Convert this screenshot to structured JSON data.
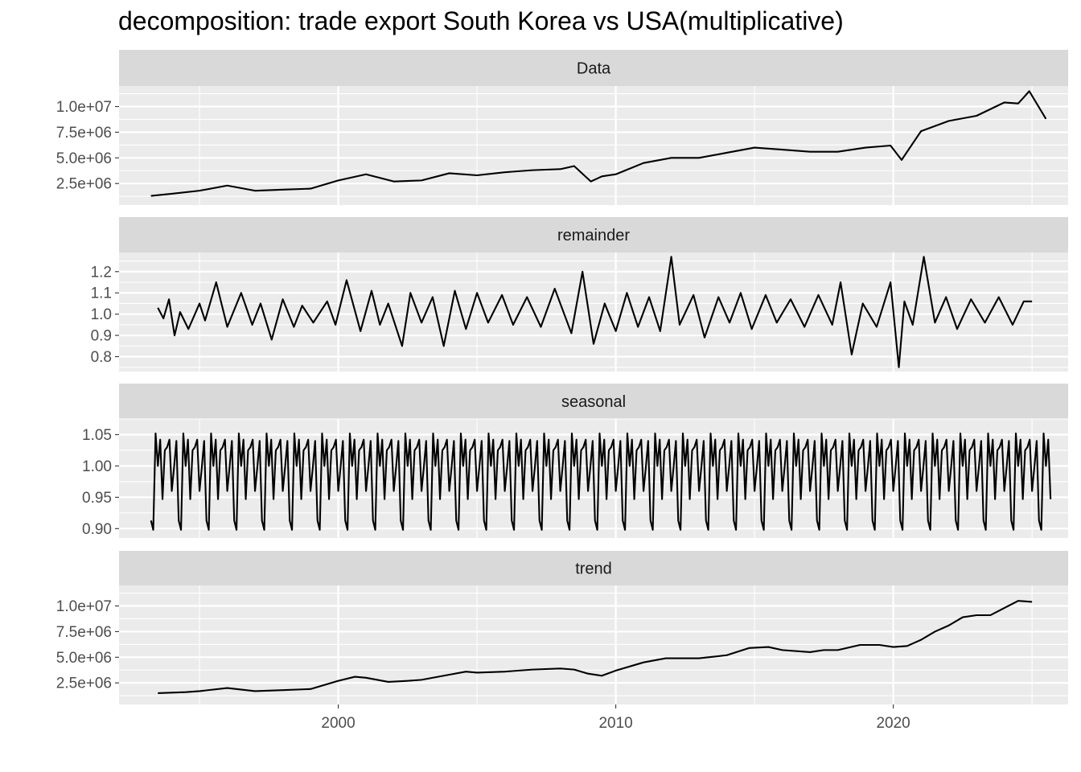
{
  "title": "decomposition: trade export South Korea vs USA(multiplicative)",
  "colors": {
    "panel_background": "#ebebeb",
    "strip_background": "#d9d9d9",
    "grid": "#ffffff",
    "line": "#000000",
    "axis_text": "#4d4d4d",
    "strip_text": "#1a1a1a"
  },
  "chart_data": {
    "type": "line",
    "title": "decomposition: trade export South Korea vs USA(multiplicative)",
    "xlabel": "",
    "ylabel": "",
    "grid": true,
    "legend": "none",
    "x_axis": {
      "range": [
        1992.1,
        2026.3
      ],
      "ticks": [
        2000,
        2010,
        2020
      ],
      "tick_labels": [
        "2000",
        "2010",
        "2020"
      ]
    },
    "panels": [
      {
        "name": "Data",
        "ylim": [
          400000,
          12000000
        ],
        "y_ticks": [
          2500000,
          5000000,
          7500000,
          10000000
        ],
        "y_tick_labels": [
          "2.5e+06",
          "5.0e+06",
          "7.5e+06",
          "1.0e+07"
        ],
        "x": [
          1993.25,
          1994,
          1995,
          1996,
          1997,
          1998,
          1999,
          2000,
          2001,
          2002,
          2003,
          2004,
          2005,
          2006,
          2007,
          2008,
          2008.5,
          2009.1,
          2009.5,
          2010,
          2011,
          2012,
          2013,
          2014,
          2015,
          2016,
          2017,
          2018,
          2019,
          2019.9,
          2020.3,
          2021,
          2022,
          2023,
          2024,
          2024.5,
          2024.9,
          2025.5
        ],
        "values": [
          1300000,
          1500000,
          1800000,
          2300000,
          1800000,
          1900000,
          2000000,
          2800000,
          3400000,
          2700000,
          2800000,
          3500000,
          3300000,
          3600000,
          3800000,
          3900000,
          4200000,
          2700000,
          3200000,
          3400000,
          4500000,
          5000000,
          5000000,
          5500000,
          6000000,
          5800000,
          5600000,
          5600000,
          6000000,
          6200000,
          4800000,
          7600000,
          8600000,
          9100000,
          10400000,
          10300000,
          11500000,
          8800000
        ]
      },
      {
        "name": "remainder",
        "ylim": [
          0.73,
          1.29
        ],
        "y_ticks": [
          0.8,
          0.9,
          1.0,
          1.1,
          1.2
        ],
        "y_tick_labels": [
          "0.8",
          "0.9",
          "1.0",
          "1.1",
          "1.2"
        ],
        "x": [
          1993.5,
          1993.7,
          1993.9,
          1994.1,
          1994.3,
          1994.6,
          1995,
          1995.2,
          1995.6,
          1996,
          1996.5,
          1996.9,
          1997.2,
          1997.6,
          1998,
          1998.4,
          1998.7,
          1999.1,
          1999.6,
          1999.9,
          2000.3,
          2000.8,
          2001.2,
          2001.5,
          2001.8,
          2002.3,
          2002.6,
          2003,
          2003.4,
          2003.8,
          2004.2,
          2004.6,
          2005,
          2005.4,
          2005.9,
          2006.3,
          2006.8,
          2007.3,
          2007.8,
          2008.4,
          2008.8,
          2009.2,
          2009.6,
          2010,
          2010.4,
          2010.8,
          2011.2,
          2011.6,
          2012,
          2012.3,
          2012.8,
          2013.2,
          2013.7,
          2014.1,
          2014.5,
          2014.9,
          2015.4,
          2015.8,
          2016.3,
          2016.8,
          2017.3,
          2017.8,
          2018.1,
          2018.5,
          2018.9,
          2019.4,
          2019.9,
          2020.2,
          2020.4,
          2020.7,
          2021.1,
          2021.5,
          2021.9,
          2022.3,
          2022.8,
          2023.3,
          2023.8,
          2024.3,
          2024.7,
          2025
        ],
        "values": [
          1.03,
          0.98,
          1.07,
          0.9,
          1.01,
          0.93,
          1.05,
          0.97,
          1.15,
          0.94,
          1.1,
          0.95,
          1.05,
          0.88,
          1.07,
          0.94,
          1.04,
          0.96,
          1.06,
          0.95,
          1.16,
          0.92,
          1.11,
          0.95,
          1.05,
          0.85,
          1.1,
          0.96,
          1.08,
          0.85,
          1.11,
          0.93,
          1.1,
          0.96,
          1.09,
          0.95,
          1.08,
          0.94,
          1.12,
          0.91,
          1.2,
          0.86,
          1.05,
          0.92,
          1.1,
          0.94,
          1.08,
          0.92,
          1.27,
          0.95,
          1.09,
          0.89,
          1.08,
          0.96,
          1.1,
          0.93,
          1.09,
          0.96,
          1.07,
          0.94,
          1.09,
          0.95,
          1.15,
          0.81,
          1.05,
          0.94,
          1.15,
          0.75,
          1.06,
          0.95,
          1.27,
          0.96,
          1.08,
          0.93,
          1.07,
          0.96,
          1.08,
          0.95,
          1.06,
          1.06
        ]
      },
      {
        "name": "seasonal",
        "ylim": [
          0.885,
          1.075
        ],
        "y_ticks": [
          0.9,
          0.95,
          1.0,
          1.05
        ],
        "y_tick_labels": [
          "0.90",
          "0.95",
          "1.00",
          "1.05"
        ],
        "seasonal_pattern": [
          0.913,
          0.898,
          1.052,
          1.0,
          1.042,
          0.947,
          1.025,
          1.03,
          1.042,
          0.96,
          0.998,
          1.04
        ],
        "start_year": 1993.25,
        "years": 32.5,
        "x": [
          1993.25,
          1993.33,
          1993.42,
          1993.5,
          1993.58,
          1993.67,
          1993.75,
          1993.83,
          1993.92,
          1994.0,
          1994.08,
          1994.17
        ],
        "values": [
          0.913,
          0.898,
          1.052,
          1.0,
          1.042,
          0.947,
          1.025,
          1.03,
          1.042,
          0.96,
          0.998,
          1.04
        ]
      },
      {
        "name": "trend",
        "ylim": [
          400000,
          12000000
        ],
        "y_ticks": [
          2500000,
          5000000,
          7500000,
          10000000
        ],
        "y_tick_labels": [
          "2.5e+06",
          "5.0e+06",
          "7.5e+06",
          "1.0e+07"
        ],
        "x": [
          1993.5,
          1994.5,
          1995,
          1996,
          1997,
          1998,
          1999,
          2000,
          2000.6,
          2001,
          2001.8,
          2002.5,
          2003,
          2004,
          2004.6,
          2005,
          2006,
          2007,
          2008,
          2008.5,
          2009,
          2009.5,
          2010,
          2011,
          2011.8,
          2012.5,
          2013,
          2014,
          2014.8,
          2015.5,
          2016,
          2017,
          2017.5,
          2018,
          2018.8,
          2019.5,
          2020,
          2020.5,
          2021,
          2021.5,
          2022,
          2022.5,
          2023,
          2023.5,
          2024,
          2024.5,
          2025
        ],
        "values": [
          1500000,
          1600000,
          1700000,
          2000000,
          1700000,
          1800000,
          1900000,
          2700000,
          3100000,
          3000000,
          2600000,
          2700000,
          2800000,
          3300000,
          3600000,
          3500000,
          3600000,
          3800000,
          3900000,
          3800000,
          3400000,
          3200000,
          3700000,
          4500000,
          4900000,
          4900000,
          4900000,
          5200000,
          5900000,
          6000000,
          5700000,
          5500000,
          5700000,
          5700000,
          6200000,
          6200000,
          6000000,
          6100000,
          6700000,
          7500000,
          8100000,
          8900000,
          9100000,
          9100000,
          9800000,
          10500000,
          10400000
        ]
      }
    ]
  }
}
